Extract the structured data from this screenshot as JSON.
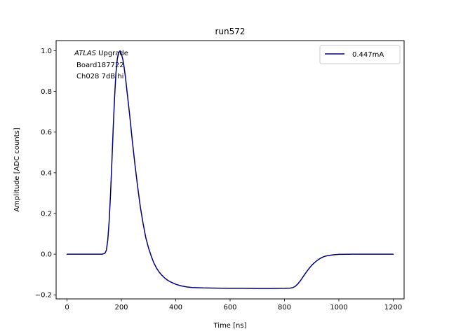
{
  "chart_data": {
    "type": "line",
    "title": "run572",
    "xlabel": "Time [ns]",
    "ylabel": "Amplitude [ADC counts]",
    "xlim": [
      -40,
      1240
    ],
    "ylim": [
      -0.22,
      1.05
    ],
    "xticks": [
      0,
      200,
      400,
      600,
      800,
      1000,
      1200
    ],
    "xtick_labels": [
      "0",
      "200",
      "400",
      "600",
      "800",
      "1000",
      "1200"
    ],
    "yticks": [
      -0.2,
      0.0,
      0.2,
      0.4,
      0.6,
      0.8,
      1.0
    ],
    "ytick_labels": [
      "−0.2",
      "0.0",
      "0.2",
      "0.4",
      "0.6",
      "0.8",
      "1.0"
    ],
    "grid": false,
    "legend_position": "top-right",
    "annotation": {
      "line1_italic": "ATLAS",
      "line1_rest": " Upgrade",
      "line2": "Board187722",
      "line3": "Ch028 7dB hi"
    },
    "series": [
      {
        "name": "0.447mA",
        "color": "#00007f",
        "x": [
          0,
          50,
          100,
          130,
          140,
          145,
          150,
          155,
          160,
          165,
          170,
          175,
          180,
          185,
          190,
          195,
          200,
          205,
          210,
          215,
          220,
          225,
          230,
          240,
          250,
          260,
          270,
          280,
          290,
          300,
          310,
          320,
          330,
          340,
          350,
          360,
          370,
          380,
          400,
          420,
          440,
          460,
          480,
          500,
          550,
          600,
          650,
          700,
          750,
          800,
          820,
          830,
          840,
          850,
          860,
          870,
          880,
          890,
          900,
          910,
          920,
          930,
          940,
          950,
          960,
          980,
          1000,
          1050,
          1100,
          1150,
          1200
        ],
        "y": [
          0.0,
          0.0,
          0.0,
          0.0,
          0.005,
          0.02,
          0.07,
          0.16,
          0.29,
          0.45,
          0.62,
          0.77,
          0.89,
          0.96,
          0.99,
          1.0,
          0.985,
          0.96,
          0.92,
          0.87,
          0.81,
          0.75,
          0.69,
          0.56,
          0.44,
          0.33,
          0.23,
          0.15,
          0.08,
          0.03,
          -0.01,
          -0.045,
          -0.07,
          -0.09,
          -0.105,
          -0.118,
          -0.128,
          -0.136,
          -0.148,
          -0.156,
          -0.161,
          -0.164,
          -0.165,
          -0.166,
          -0.167,
          -0.168,
          -0.168,
          -0.169,
          -0.169,
          -0.168,
          -0.167,
          -0.165,
          -0.158,
          -0.145,
          -0.128,
          -0.108,
          -0.089,
          -0.071,
          -0.055,
          -0.042,
          -0.031,
          -0.022,
          -0.015,
          -0.01,
          -0.007,
          -0.003,
          -0.001,
          0.0,
          0.0,
          0.0,
          0.0
        ]
      }
    ]
  }
}
